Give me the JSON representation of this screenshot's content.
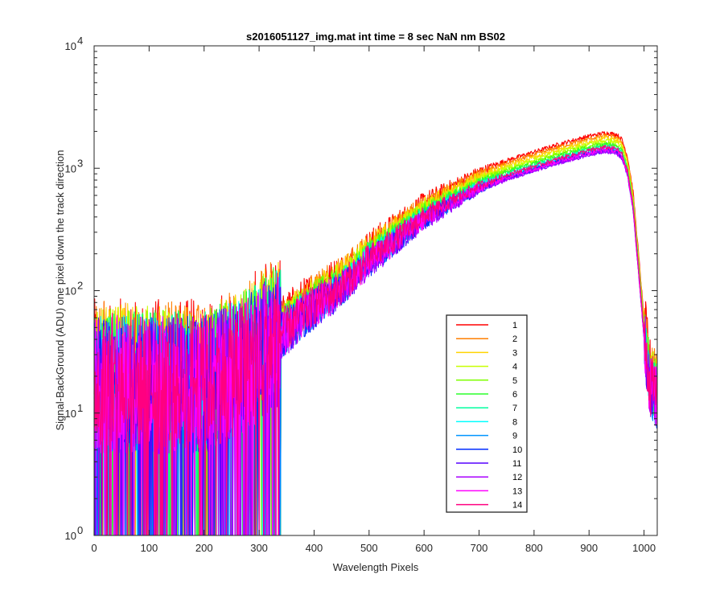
{
  "chart_data": {
    "type": "line",
    "title": "s2016051127_img.mat int time = 8 sec  NaN nm BS02",
    "xlabel": "Wavelength Pixels",
    "ylabel": "Signal-BackGround (ADU) one pixel down the track direction",
    "xlim": [
      0,
      1024
    ],
    "ylim": [
      1,
      10000
    ],
    "yscale": "log",
    "xticks": [
      0,
      100,
      200,
      300,
      400,
      500,
      600,
      700,
      800,
      900,
      1000
    ],
    "ytick_exponents": [
      0,
      1,
      2,
      3,
      4
    ],
    "ytick_base": "10",
    "grid": false,
    "legend_position": "lower-right",
    "series": [
      {
        "name": "1",
        "color": "#ff0000"
      },
      {
        "name": "2",
        "color": "#ff7f00"
      },
      {
        "name": "3",
        "color": "#ffd400"
      },
      {
        "name": "4",
        "color": "#c8ff00"
      },
      {
        "name": "5",
        "color": "#7fff00"
      },
      {
        "name": "6",
        "color": "#2bff2b"
      },
      {
        "name": "7",
        "color": "#00ff9f"
      },
      {
        "name": "8",
        "color": "#00ffff"
      },
      {
        "name": "9",
        "color": "#0095ff"
      },
      {
        "name": "10",
        "color": "#002bff"
      },
      {
        "name": "11",
        "color": "#5500ff"
      },
      {
        "name": "12",
        "color": "#aa00ff"
      },
      {
        "name": "13",
        "color": "#ff00ff"
      },
      {
        "name": "14",
        "color": "#ff0080"
      }
    ],
    "envelope": {
      "x": [
        0,
        50,
        100,
        150,
        200,
        250,
        300,
        350,
        400,
        450,
        500,
        550,
        600,
        650,
        700,
        750,
        800,
        850,
        900,
        930,
        950,
        960,
        970,
        980,
        990,
        1000,
        1010,
        1024
      ],
      "mean": [
        20,
        20,
        20,
        20,
        20,
        25,
        35,
        55,
        85,
        120,
        200,
        300,
        450,
        600,
        800,
        980,
        1150,
        1350,
        1550,
        1650,
        1600,
        1450,
        1050,
        550,
        170,
        50,
        20,
        15
      ],
      "scale_per_series": [
        1.18,
        1.12,
        1.07,
        1.02,
        0.98,
        0.95,
        0.92,
        0.89,
        0.87,
        0.85,
        0.84,
        0.83,
        0.86,
        0.9
      ]
    }
  }
}
